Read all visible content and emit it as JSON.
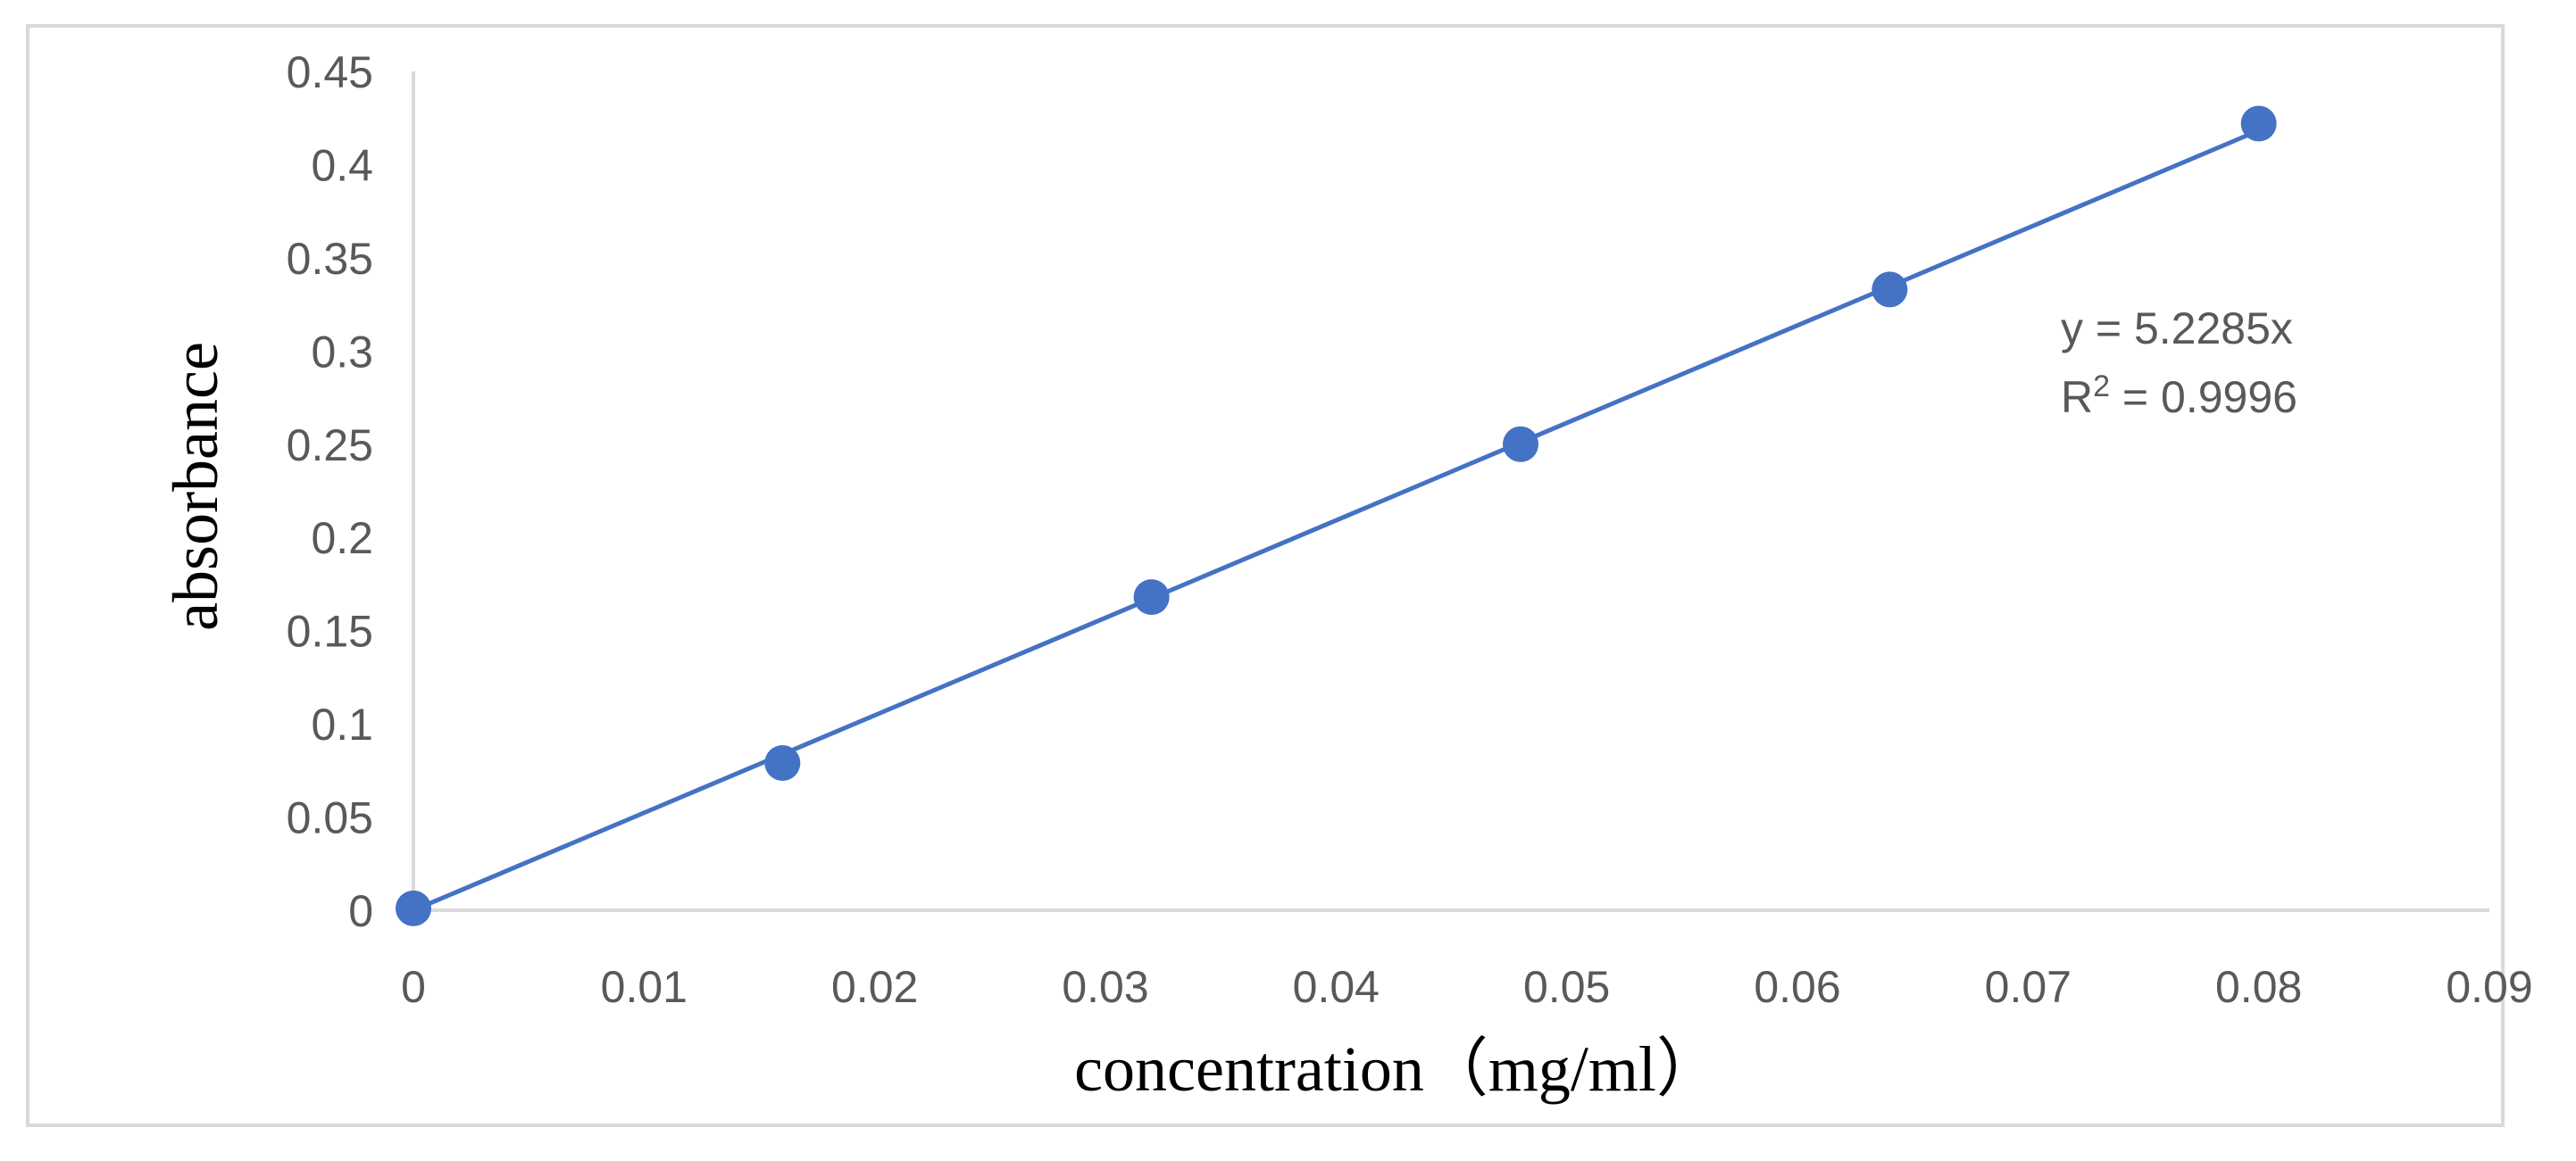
{
  "chart_data": {
    "type": "scatter",
    "title": "",
    "xlabel": "concentration（mg/ml）",
    "ylabel": "absorbance",
    "xlim": [
      0,
      0.09
    ],
    "ylim": [
      0,
      0.45
    ],
    "x_ticks": [
      "0",
      "0.01",
      "0.02",
      "0.03",
      "0.04",
      "0.05",
      "0.06",
      "0.07",
      "0.08",
      "0.09"
    ],
    "y_ticks": [
      "0",
      "0.05",
      "0.1",
      "0.15",
      "0.2",
      "0.25",
      "0.3",
      "0.35",
      "0.4",
      "0.45"
    ],
    "grid": false,
    "legend": "none",
    "series": [
      {
        "name": "absorbance",
        "x": [
          0,
          0.016,
          0.032,
          0.048,
          0.064,
          0.08
        ],
        "y": [
          0.001,
          0.079,
          0.168,
          0.25,
          0.333,
          0.422
        ],
        "color": "#4472c4"
      }
    ],
    "trendline": {
      "slope": 5.2285,
      "intercept": 0,
      "x_range": [
        0,
        0.08
      ],
      "equation": "y = 5.2285x",
      "r2_prefix": "R",
      "r2_sup": "2",
      "r2_value": " = 0.9996",
      "color": "#4472c4"
    },
    "axis_color": "#d9d9d9"
  }
}
